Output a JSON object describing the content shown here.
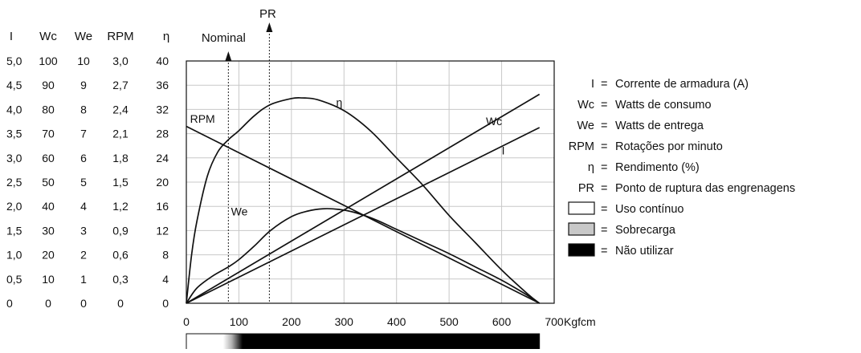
{
  "chart_data": {
    "type": "line",
    "x_unit": "Kgfcm",
    "x_ticks": [
      0,
      100,
      200,
      300,
      400,
      500,
      600,
      700
    ],
    "xlim": [
      0,
      700
    ],
    "y_axes": [
      {
        "name": "I",
        "ticks": [
          "5,0",
          "4,5",
          "4,0",
          "3,5",
          "3,0",
          "2,5",
          "2,0",
          "1,5",
          "1,0",
          "0,5",
          "0"
        ]
      },
      {
        "name": "Wc",
        "ticks": [
          "100",
          "90",
          "80",
          "70",
          "60",
          "50",
          "40",
          "30",
          "20",
          "10",
          "0"
        ]
      },
      {
        "name": "We",
        "ticks": [
          "10",
          "9",
          "8",
          "7",
          "6",
          "5",
          "4",
          "3",
          "2",
          "1",
          "0"
        ]
      },
      {
        "name": "RPM",
        "ticks": [
          "3,0",
          "2,7",
          "2,4",
          "2,1",
          "1,8",
          "1,5",
          "1,2",
          "0,9",
          "0,6",
          "0,3",
          "0"
        ]
      },
      {
        "name": "η",
        "ticks": [
          "40",
          "36",
          "32",
          "28",
          "24",
          "20",
          "16",
          "12",
          "8",
          "4",
          "0"
        ]
      }
    ],
    "eta_ylim": [
      0,
      40
    ],
    "series": [
      {
        "name": "η",
        "axis": "η",
        "x": [
          0,
          10,
          20,
          40,
          60,
          80,
          100,
          130,
          160,
          200,
          220,
          250,
          300,
          350,
          400,
          450,
          500,
          550,
          600,
          650,
          672
        ],
        "y": [
          0,
          8,
          13.5,
          21,
          25,
          27,
          28.5,
          31,
          32.8,
          33.8,
          33.9,
          33.6,
          31.8,
          28.5,
          24,
          19.5,
          14.5,
          10,
          5.5,
          1.5,
          0
        ]
      },
      {
        "name": "We",
        "axis": "η",
        "x": [
          0,
          20,
          50,
          80,
          100,
          130,
          160,
          200,
          230,
          260,
          290,
          320,
          360,
          400,
          450,
          500,
          550,
          600,
          640,
          672
        ],
        "y": [
          0,
          2.5,
          4.5,
          6,
          7.2,
          9.5,
          12,
          14.3,
          15.2,
          15.6,
          15.5,
          15,
          13.8,
          12.2,
          10.2,
          8.2,
          6,
          3.8,
          1.8,
          0
        ]
      },
      {
        "name": "RPM",
        "axis": "η",
        "x": [
          0,
          672
        ],
        "y": [
          29.2,
          0
        ]
      },
      {
        "name": "Wc",
        "axis": "η",
        "x": [
          0,
          672
        ],
        "y": [
          0,
          34.5
        ]
      },
      {
        "name": "I",
        "axis": "η",
        "x": [
          0,
          672
        ],
        "y": [
          0,
          29
        ]
      }
    ],
    "curve_labels": [
      {
        "text": "η",
        "x": 285,
        "y": 32.5
      },
      {
        "text": "RPM",
        "x": 7,
        "y": 29.8
      },
      {
        "text": "Wc",
        "x": 570,
        "y": 29.4
      },
      {
        "text": "I",
        "x": 600,
        "y": 24.6
      },
      {
        "text": "We",
        "x": 85,
        "y": 14.5
      }
    ],
    "markers": [
      {
        "label": "Nominal",
        "x": 80
      },
      {
        "label": "PR",
        "x": 158
      }
    ],
    "usage_bar": {
      "continuous_until": 70,
      "gradient_until": 107,
      "end": 672
    },
    "grid": true
  },
  "legend": [
    {
      "key": "I",
      "text": "Corrente de armadura (A)"
    },
    {
      "key": "Wc",
      "text": "Watts de consumo"
    },
    {
      "key": "We",
      "text": "Watts de entrega"
    },
    {
      "key": "RPM",
      "text": "Rotações por minuto"
    },
    {
      "key": "η",
      "text": "Rendimento (%)"
    },
    {
      "key": "PR",
      "text": "Ponto de ruptura das engrenagens"
    }
  ],
  "usage_legend": [
    {
      "swatch": "#ffffff",
      "text": "Uso contínuo"
    },
    {
      "swatch": "#c8c8c8",
      "text": "Sobrecarga"
    },
    {
      "swatch": "#000000",
      "text": "Não utilizar"
    }
  ],
  "equals_sign": "="
}
